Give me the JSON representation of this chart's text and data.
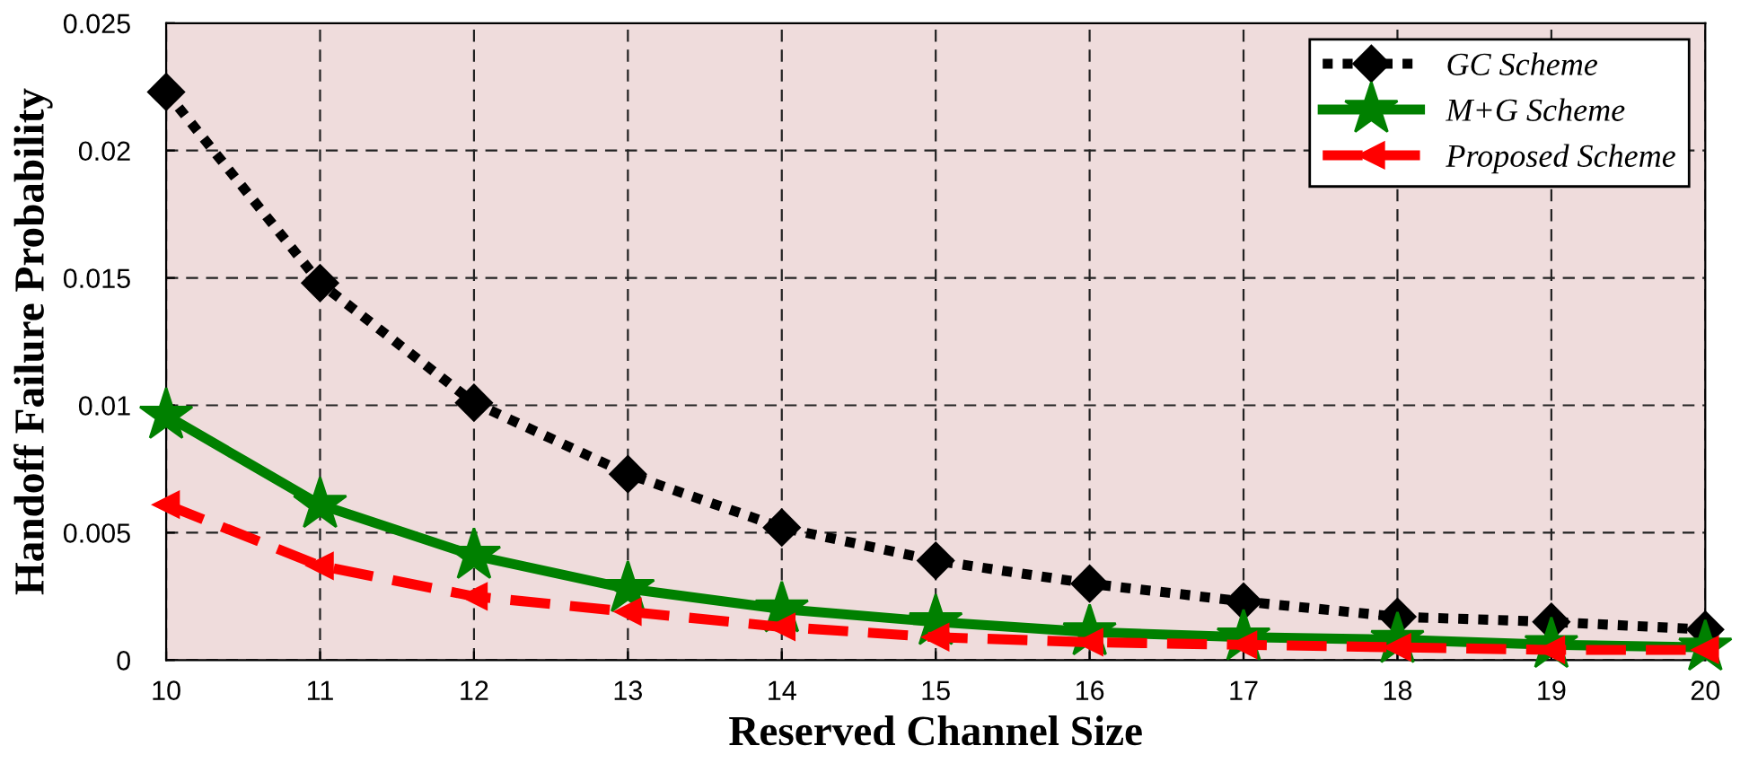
{
  "chart_data": {
    "type": "line",
    "xlabel": "Reserved Channel Size",
    "ylabel": "Handoff Failure Probability",
    "x": [
      10,
      11,
      12,
      13,
      14,
      15,
      16,
      17,
      18,
      19,
      20
    ],
    "series": [
      {
        "name": "GC Scheme",
        "color": "#000000",
        "marker": "diamond",
        "line_style": "dotted",
        "values": [
          0.0223,
          0.0148,
          0.0101,
          0.0073,
          0.0052,
          0.0039,
          0.003,
          0.0023,
          0.0017,
          0.0015,
          0.0012
        ]
      },
      {
        "name": "M+G Scheme",
        "color": "#008000",
        "marker": "star",
        "line_style": "solid",
        "values": [
          0.0096,
          0.0061,
          0.0041,
          0.0028,
          0.002,
          0.0015,
          0.0011,
          0.0009,
          0.0008,
          0.0006,
          0.0005
        ]
      },
      {
        "name": "Proposed Scheme",
        "color": "#ff0000",
        "marker": "triangle",
        "line_style": "dashed",
        "values": [
          0.0061,
          0.0037,
          0.0025,
          0.0019,
          0.0013,
          0.0009,
          0.0007,
          0.0006,
          0.0005,
          0.0004,
          0.0004
        ]
      }
    ],
    "xlim": [
      10,
      20
    ],
    "xticks": [
      10,
      11,
      12,
      13,
      14,
      15,
      16,
      17,
      18,
      19,
      20
    ],
    "ylim": [
      0,
      0.025
    ],
    "yticks": [
      0,
      0.005,
      0.01,
      0.015,
      0.02,
      0.025
    ],
    "grid": true,
    "legend": "top right"
  }
}
